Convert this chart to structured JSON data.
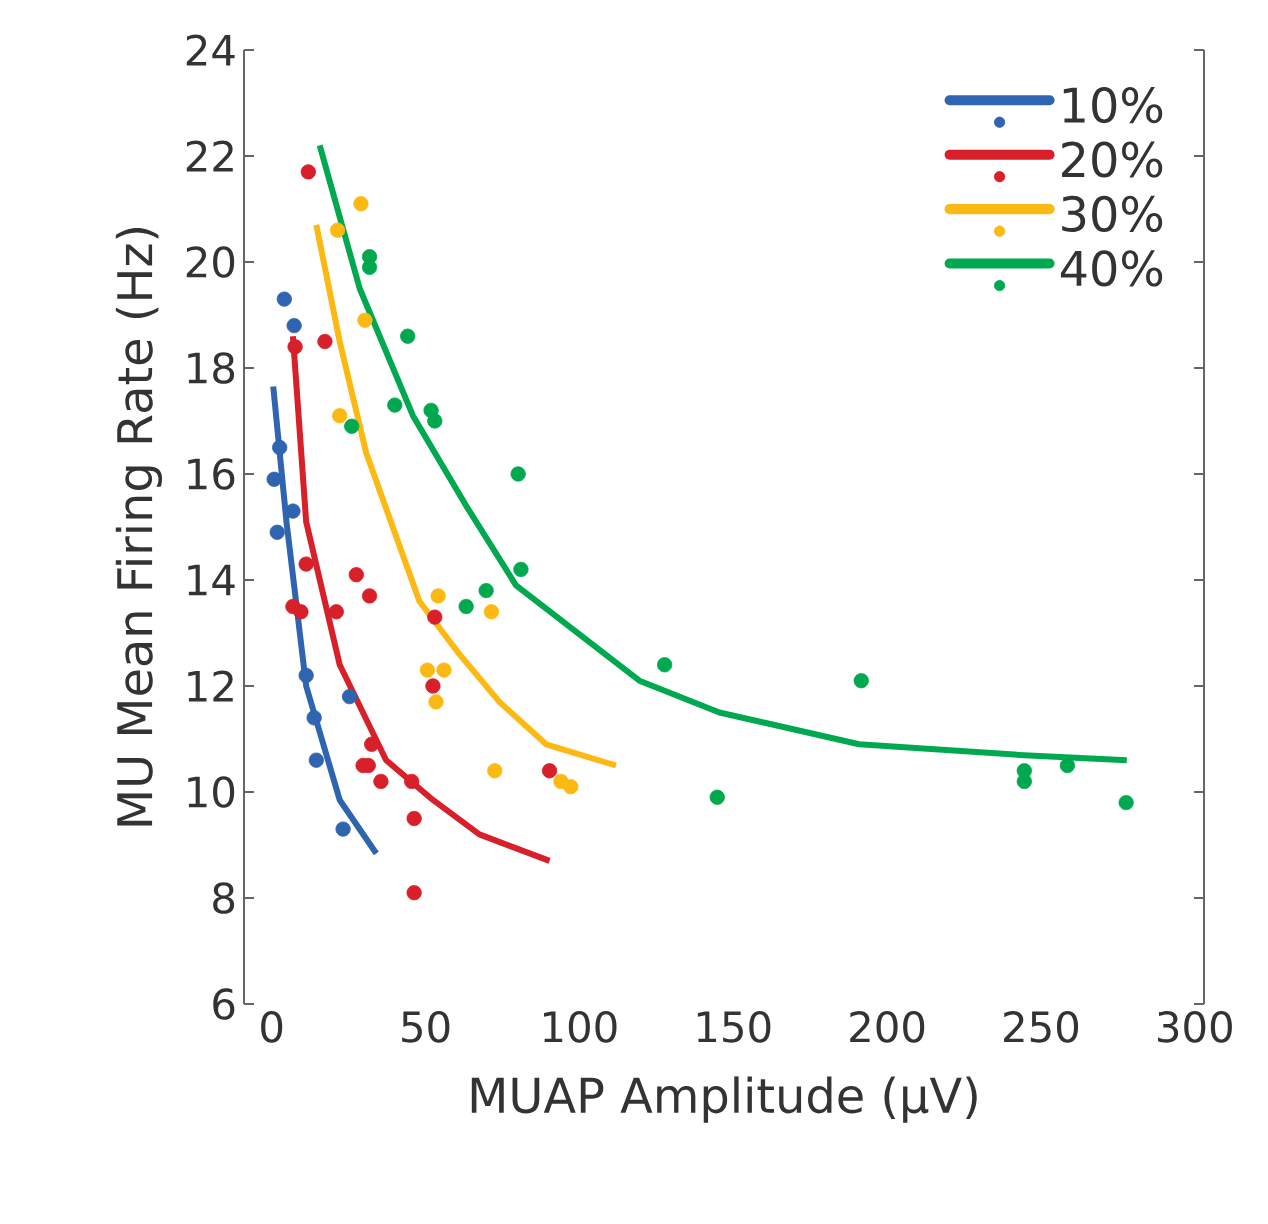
{
  "chart_data": {
    "type": "scatter",
    "xlabel": "MUAP Amplitude (µV)",
    "ylabel": "MU Mean Firing Rate (Hz)",
    "xlim": [
      -9,
      303
    ],
    "ylim": [
      6,
      24
    ],
    "xticks": [
      0,
      50,
      100,
      150,
      200,
      250,
      300
    ],
    "yticks": [
      6,
      8,
      10,
      12,
      14,
      16,
      18,
      20,
      22,
      24
    ],
    "legend": "top right",
    "series": [
      {
        "name": "10%",
        "type": "scatter",
        "marker": "circle",
        "color": "#2e64b0",
        "x": [
          4.1,
          7.3,
          2.6,
          0.8,
          6.9,
          1.8,
          11.2,
          13.8,
          14.5,
          25.3,
          23.2
        ],
        "values": [
          19.3,
          18.8,
          16.5,
          15.9,
          15.3,
          14.9,
          12.2,
          11.4,
          10.6,
          11.8,
          9.3
        ]
      },
      {
        "name": "20%",
        "type": "scatter",
        "marker": "circle",
        "color": "#d7202a",
        "x": [
          11.9,
          17.3,
          7.6,
          11.2,
          6.9,
          9.5,
          27.5,
          31.8,
          21,
          53,
          52.4,
          32.5,
          29.7,
          31.4,
          35.5,
          45.5,
          46.3,
          46.3,
          90.3
        ],
        "values": [
          21.7,
          18.5,
          18.4,
          14.3,
          13.5,
          13.4,
          14.1,
          13.7,
          13.4,
          13.3,
          12.0,
          10.9,
          10.5,
          10.5,
          10.2,
          10.2,
          9.5,
          8.1,
          10.4
        ]
      },
      {
        "name": "30%",
        "type": "scatter",
        "marker": "circle",
        "color": "#fdb913",
        "x": [
          29,
          21.4,
          30.3,
          22.1,
          54.1,
          71.4,
          50.6,
          56,
          53.4,
          72.5,
          94,
          97.2
        ],
        "values": [
          21.1,
          20.6,
          18.9,
          17.1,
          13.7,
          13.4,
          12.3,
          12.3,
          11.7,
          10.4,
          10.2,
          10.1
        ]
      },
      {
        "name": "40%",
        "type": "scatter",
        "marker": "circle",
        "color": "#00a94f",
        "x": [
          31.8,
          31.8,
          44.2,
          40,
          51.8,
          53,
          26,
          63.2,
          69.7,
          80.1,
          81,
          127.7,
          144.8,
          191.6,
          244.6,
          244.6,
          258.6,
          277.7
        ],
        "values": [
          20.1,
          19.9,
          18.6,
          17.3,
          17.2,
          17.0,
          16.9,
          13.5,
          13.8,
          16.0,
          14.2,
          12.4,
          9.9,
          12.1,
          10.4,
          10.2,
          10.5,
          9.8
        ]
      },
      {
        "type": "line",
        "marker": "none",
        "color": "#2e64b0",
        "x": [
          0.5,
          4.8,
          11.2,
          22.1,
          34
        ],
        "values": [
          17.65,
          15.1,
          12.0,
          9.85,
          8.84
        ]
      },
      {
        "type": "line",
        "marker": "none",
        "color": "#d7202a",
        "x": [
          6.9,
          11.2,
          22.1,
          37.2,
          52.4,
          67.5,
          90.3
        ],
        "values": [
          18.6,
          15.1,
          12.4,
          10.6,
          9.85,
          9.2,
          8.7
        ]
      },
      {
        "type": "line",
        "marker": "none",
        "color": "#fdb913",
        "x": [
          14.5,
          22.1,
          30.7,
          48,
          61,
          74,
          89.2,
          111.9
        ],
        "values": [
          20.7,
          18.5,
          16.4,
          13.6,
          12.6,
          11.7,
          10.9,
          10.5
        ]
      },
      {
        "type": "line",
        "marker": "none",
        "color": "#00a94f",
        "x": [
          15.6,
          28.6,
          45.9,
          63.2,
          79.4,
          119.5,
          145.5,
          190.9,
          242.9,
          277.9
        ],
        "values": [
          22.2,
          19.5,
          17.1,
          15.4,
          13.9,
          12.1,
          11.5,
          10.9,
          10.7,
          10.6
        ]
      }
    ]
  }
}
